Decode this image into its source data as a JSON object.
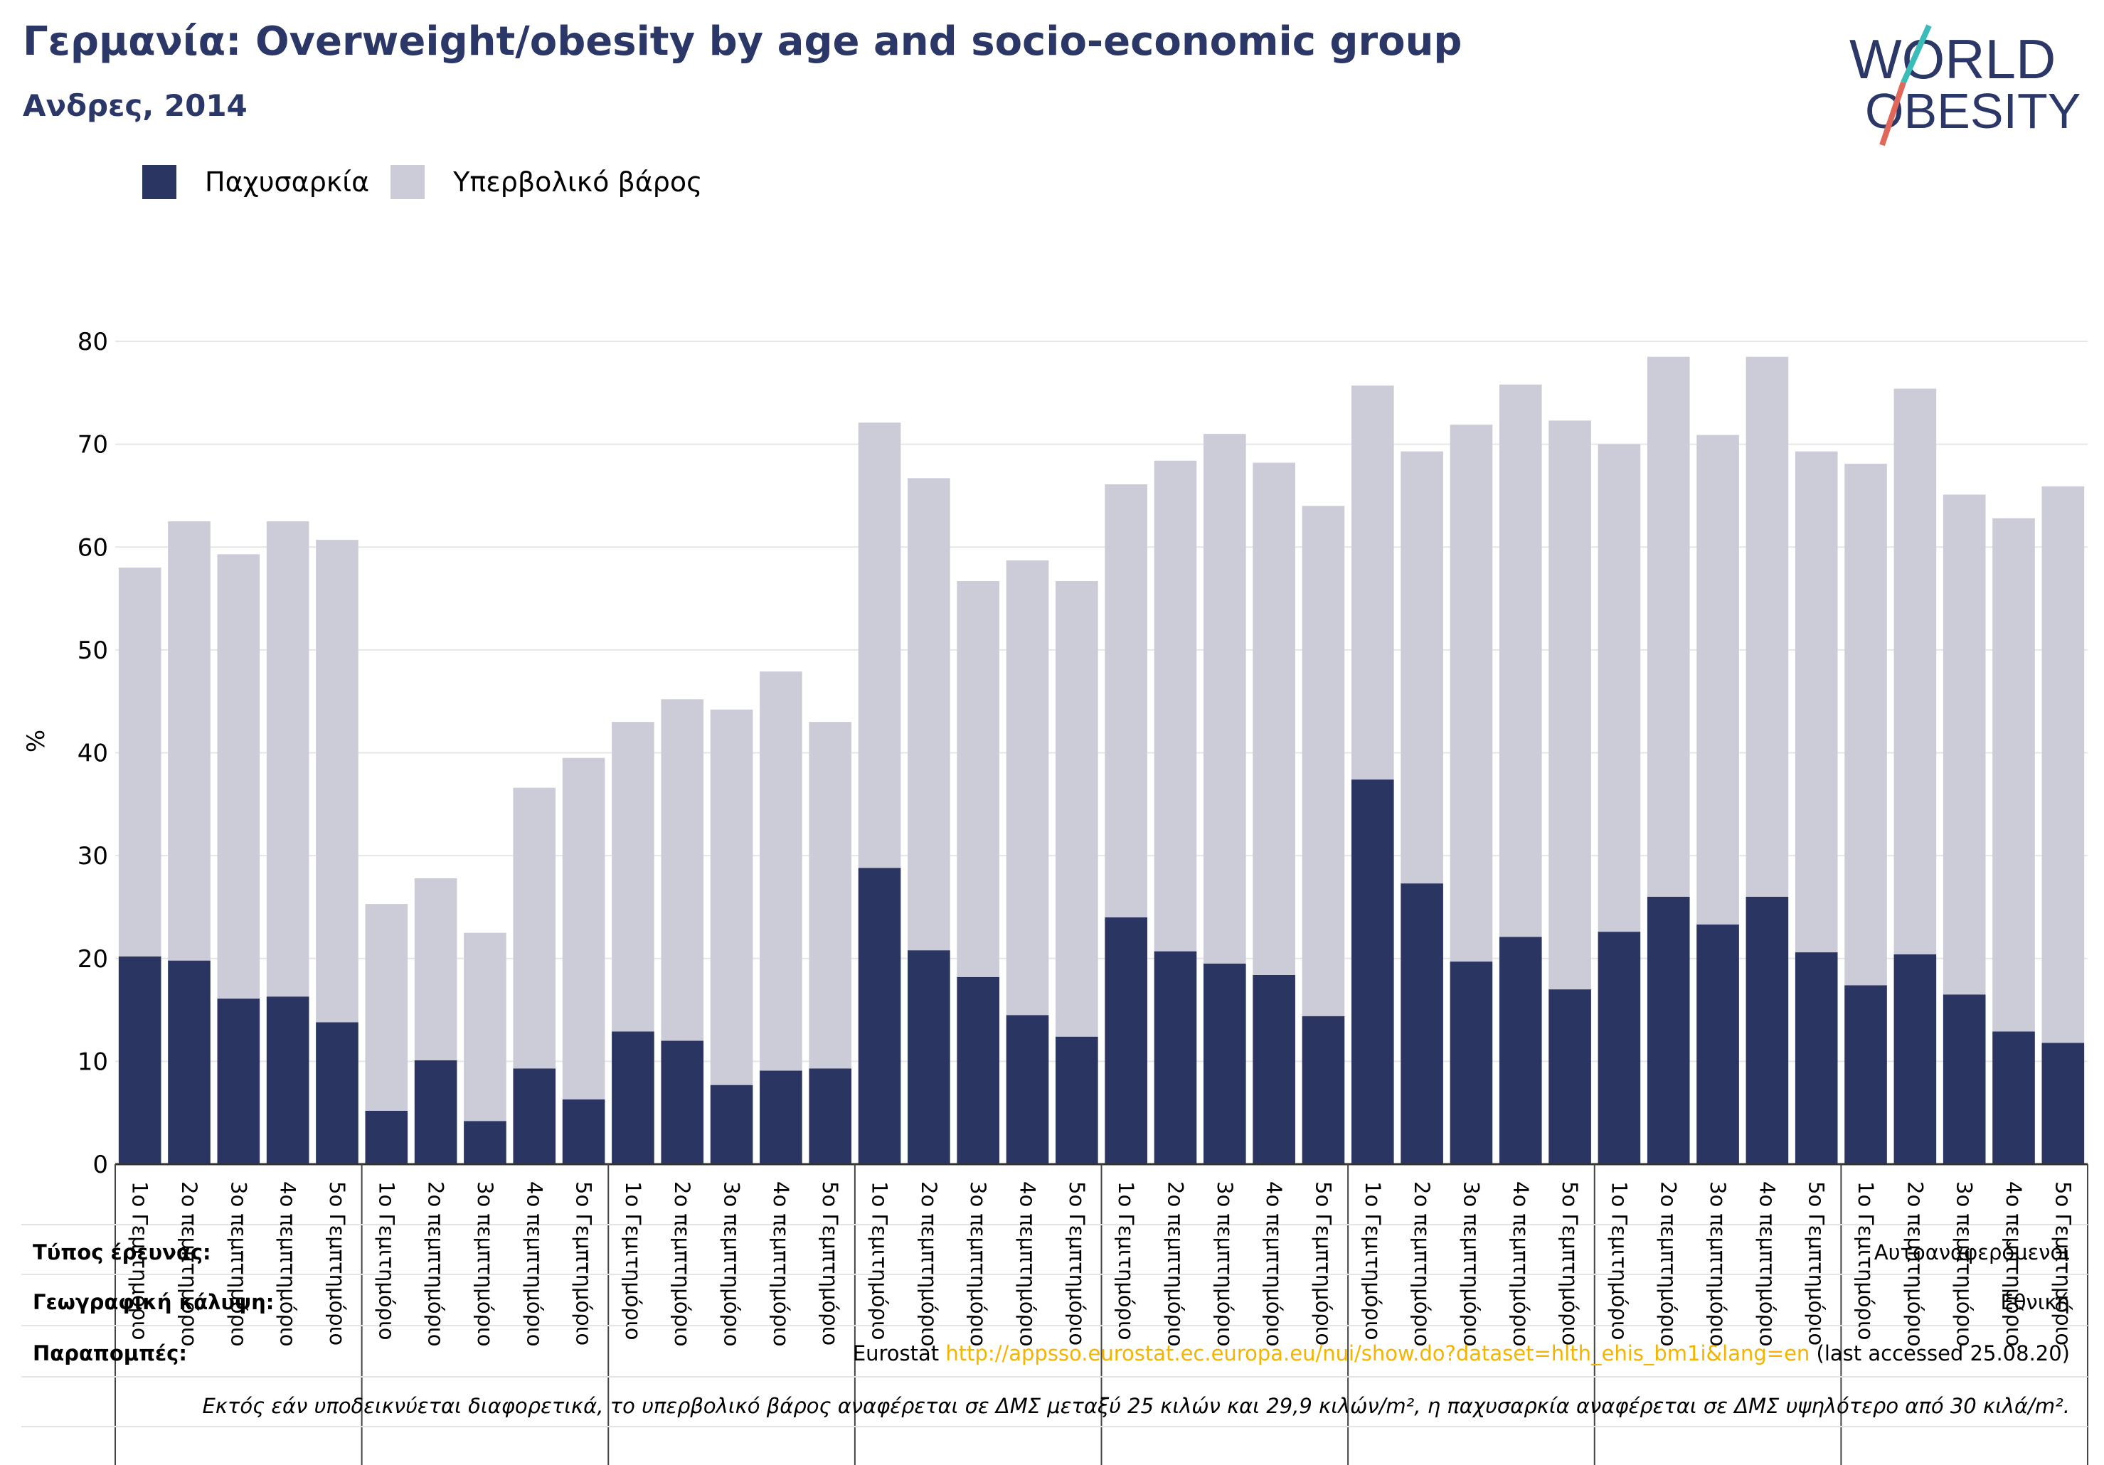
{
  "header": {
    "title": "Γερμανία: Overweight/obesity by age and socio-economic group",
    "subtitle": "Ανδρες, 2014"
  },
  "logo": {
    "line1": "WORLD",
    "line2": "OBESITY"
  },
  "colors": {
    "obesity": "#2b3562",
    "overweight": "#cbccd8",
    "title": "#2b3766",
    "link": "#f5b400",
    "logo_text": "#2b3766",
    "logo_slash_teal": "#3bbcb8",
    "logo_slash_red": "#e0675a"
  },
  "info": {
    "survey_type_label": "Τύπος έρευνας:",
    "survey_type_value": "Αυτοαναφερόμενοι",
    "coverage_label": "Γεωγραφική κάλυψη:",
    "coverage_value": "Εθνική",
    "references_label": "Παραπομπές:",
    "references_prefix": "Eurostat ",
    "references_link": "http://appsso.eurostat.ec.europa.eu/nui/show.do?dataset=hlth_ehis_bm1i&lang=en",
    "references_suffix": " (last accessed 25.08.20)",
    "footnote": "Εκτός εάν υποδεικνύεται διαφορετικά, το υπερβολικό βάρος αναφέρεται σε ΔΜΣ μεταξύ 25 κιλών και 29,9 κιλών/m², η παχυσαρκία αναφέρεται σε ΔΜΣ υψηλότερο από 30 κιλά/m²."
  },
  "chart_data": {
    "type": "bar",
    "stacked": true,
    "title": "Γερμανία: Overweight/obesity by age and socio-economic group",
    "subtitle": "Ανδρες, 2014",
    "ylabel": "%",
    "ylim": [
      0,
      80
    ],
    "yticks": [
      0,
      10,
      20,
      30,
      40,
      50,
      60,
      70,
      80
    ],
    "grid": true,
    "legend_position": "top-left",
    "categories": [
      "1ο Γεμιτημόριο",
      "2ο πεμπτημόριο",
      "3ο πεμπτημόριο",
      "4ο πεμπτημόριο",
      "5ο Γεμπτημόριο",
      "1ο Γεμιτημόριο",
      "2ο πεμπτημόριο",
      "3ο πεμπτημόριο",
      "4ο πεμπτημόριο",
      "5ο Γεμπτημόριο",
      "1ο Γεμιτημόριο",
      "2ο πεμπτημόριο",
      "3ο πεμπτημόριο",
      "4ο πεμπτημόριο",
      "5ο Γεμπτημόριο",
      "1ο Γεμιτημόριο",
      "2ο πεμπτημόριο",
      "3ο πεμπτημόριο",
      "4ο πεμπτημόριο",
      "5ο Γεμπτημόριο",
      "1ο Γεμιτημόριο",
      "2ο πεμπτημόριο",
      "3ο πεμπτημόριο",
      "4ο πεμπτημόριο",
      "5ο Γεμπτημόριο",
      "1ο Γεμιτημόριο",
      "2ο πεμπτημόριο",
      "3ο πεμπτημόριο",
      "4ο πεμπτημόριο",
      "5ο Γεμπτημόριο",
      "1ο Γεμιτημόριο",
      "2ο πεμπτημόριο",
      "3ο πεμπτημόριο",
      "4ο πεμπτημόριο",
      "5ο Γεμπτημόριο",
      "1ο Γεμιτημόριο",
      "2ο πεμπτημόριο",
      "3ο πεμπτημόριο",
      "4ο πεμπτημόριο",
      "5ο Γεμπτημόριο"
    ],
    "series": [
      {
        "name": "Παχυσαρκία",
        "values": [
          20.2,
          19.8,
          16.1,
          16.3,
          13.8,
          5.2,
          10.1,
          4.2,
          9.3,
          6.3,
          12.9,
          12.0,
          7.7,
          9.1,
          9.3,
          28.8,
          20.8,
          18.2,
          14.5,
          12.4,
          24.0,
          20.7,
          19.5,
          18.4,
          14.4,
          37.4,
          27.3,
          19.7,
          22.1,
          17.0,
          22.6,
          26.0,
          23.3,
          26.0,
          20.6,
          17.4,
          20.4,
          16.5,
          12.9,
          11.8
        ]
      },
      {
        "name": "Υπερβολικό βάρος",
        "values": [
          37.8,
          42.7,
          43.2,
          46.2,
          46.9,
          20.1,
          17.7,
          18.3,
          27.3,
          33.2,
          30.1,
          33.2,
          36.5,
          38.8,
          33.7,
          43.3,
          45.9,
          38.5,
          44.2,
          44.3,
          42.1,
          47.7,
          51.5,
          49.8,
          49.6,
          38.3,
          42.0,
          52.2,
          53.7,
          55.3,
          47.4,
          52.5,
          47.6,
          52.5,
          48.7,
          50.7,
          55.0,
          48.6,
          49.9,
          54.1
        ]
      }
    ]
  }
}
